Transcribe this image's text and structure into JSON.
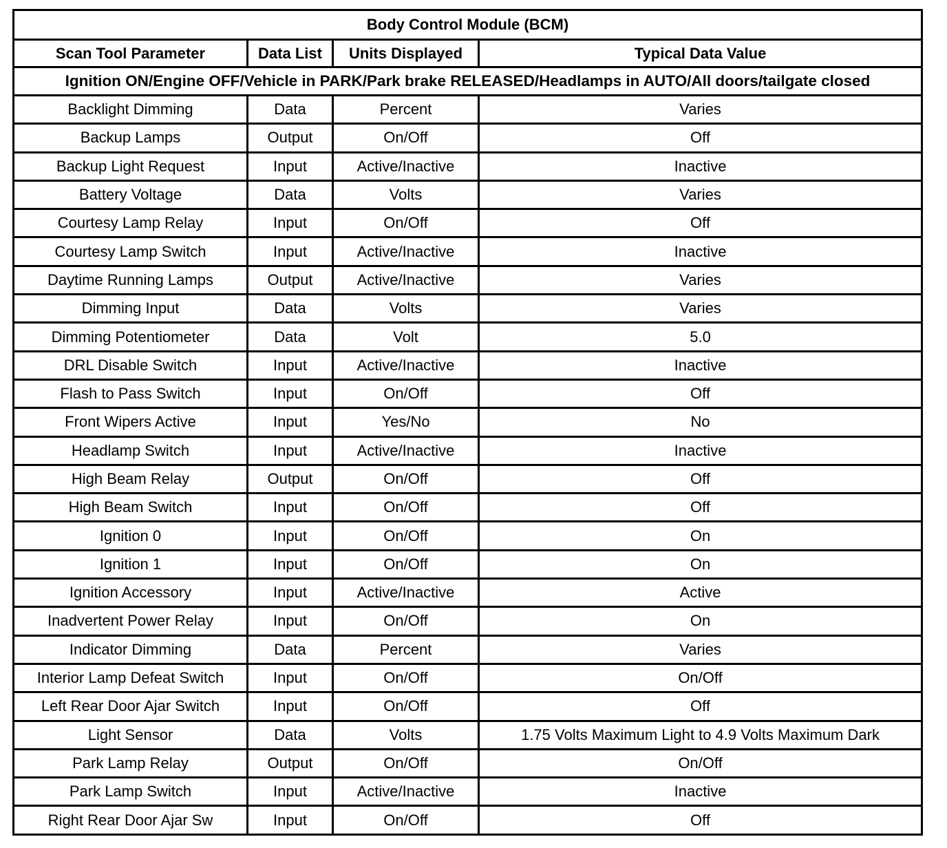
{
  "title": "Body Control Module (BCM)",
  "columns": [
    "Scan Tool Parameter",
    "Data List",
    "Units Displayed",
    "Typical Data Value"
  ],
  "condition": "Ignition ON/Engine OFF/Vehicle in PARK/Park brake RELEASED/Headlamps in AUTO/All doors/tailgate closed",
  "rows": [
    [
      "Backlight Dimming",
      "Data",
      "Percent",
      "Varies"
    ],
    [
      "Backup Lamps",
      "Output",
      "On/Off",
      "Off"
    ],
    [
      "Backup Light Request",
      "Input",
      "Active/Inactive",
      "Inactive"
    ],
    [
      "Battery Voltage",
      "Data",
      "Volts",
      "Varies"
    ],
    [
      "Courtesy Lamp Relay",
      "Input",
      "On/Off",
      "Off"
    ],
    [
      "Courtesy Lamp Switch",
      "Input",
      "Active/Inactive",
      "Inactive"
    ],
    [
      "Daytime Running Lamps",
      "Output",
      "Active/Inactive",
      "Varies"
    ],
    [
      "Dimming Input",
      "Data",
      "Volts",
      "Varies"
    ],
    [
      "Dimming Potentiometer",
      "Data",
      "Volt",
      "5.0"
    ],
    [
      "DRL Disable Switch",
      "Input",
      "Active/Inactive",
      "Inactive"
    ],
    [
      "Flash to Pass Switch",
      "Input",
      "On/Off",
      "Off"
    ],
    [
      "Front Wipers Active",
      "Input",
      "Yes/No",
      "No"
    ],
    [
      "Headlamp Switch",
      "Input",
      "Active/Inactive",
      "Inactive"
    ],
    [
      "High Beam Relay",
      "Output",
      "On/Off",
      "Off"
    ],
    [
      "High Beam Switch",
      "Input",
      "On/Off",
      "Off"
    ],
    [
      "Ignition 0",
      "Input",
      "On/Off",
      "On"
    ],
    [
      "Ignition 1",
      "Input",
      "On/Off",
      "On"
    ],
    [
      "Ignition Accessory",
      "Input",
      "Active/Inactive",
      "Active"
    ],
    [
      "Inadvertent Power Relay",
      "Input",
      "On/Off",
      "On"
    ],
    [
      "Indicator Dimming",
      "Data",
      "Percent",
      "Varies"
    ],
    [
      "Interior Lamp Defeat Switch",
      "Input",
      "On/Off",
      "On/Off"
    ],
    [
      "Left Rear Door Ajar Switch",
      "Input",
      "On/Off",
      "Off"
    ],
    [
      "Light Sensor",
      "Data",
      "Volts",
      "1.75 Volts Maximum Light to 4.9 Volts Maximum Dark"
    ],
    [
      "Park Lamp Relay",
      "Output",
      "On/Off",
      "On/Off"
    ],
    [
      "Park Lamp Switch",
      "Input",
      "Active/Inactive",
      "Inactive"
    ],
    [
      "Right Rear Door Ajar Sw",
      "Input",
      "On/Off",
      "Off"
    ]
  ]
}
